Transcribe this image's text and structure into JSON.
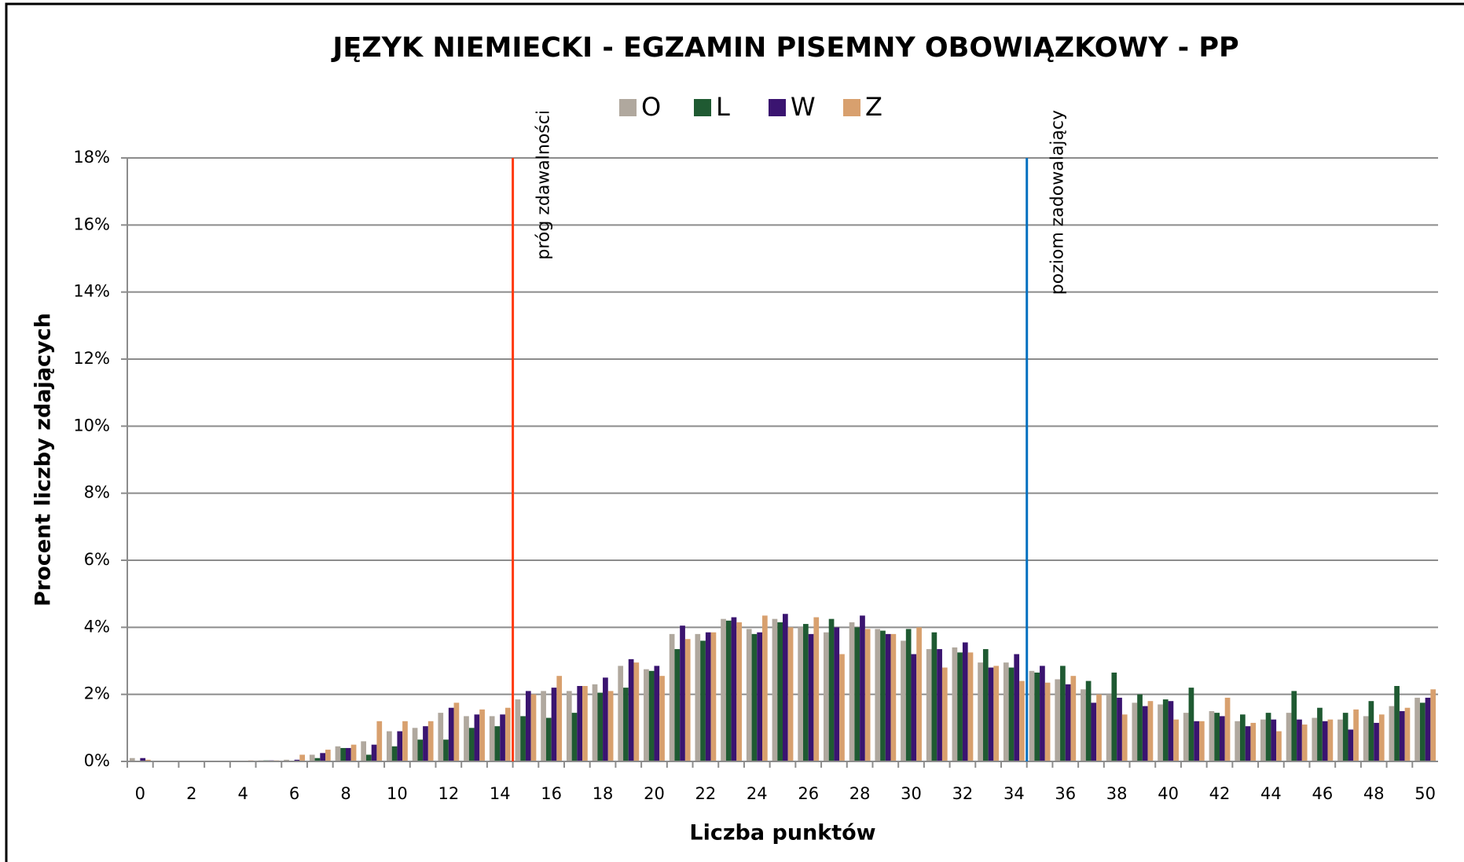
{
  "chart_data": {
    "type": "bar",
    "title": "JĘZYK NIEMIECKI - EGZAMIN PISEMNY OBOWIĄZKOWY - PP",
    "x_label": "Liczba punktów",
    "y_label": "Procent liczby zdających",
    "categories": [
      "0",
      null,
      "2",
      null,
      "4",
      null,
      "6",
      null,
      "8",
      null,
      "10",
      null,
      "12",
      null,
      "14",
      null,
      "16",
      null,
      "18",
      null,
      "20",
      null,
      "22",
      null,
      "24",
      null,
      "26",
      null,
      "28",
      null,
      "30",
      null,
      "32",
      null,
      "34",
      null,
      "36",
      null,
      "38",
      null,
      "40",
      null,
      "42",
      null,
      "44",
      null,
      "46",
      null,
      "48",
      null,
      "50"
    ],
    "series": [
      {
        "name": "O",
        "color": "#b0a89e",
        "values": [
          0.1,
          0,
          0,
          0,
          0,
          0.03,
          0.05,
          0.2,
          0.45,
          0.6,
          0.9,
          1.0,
          1.45,
          1.35,
          1.35,
          1.85,
          2.1,
          2.1,
          2.3,
          2.85,
          2.75,
          3.8,
          3.8,
          4.25,
          3.95,
          4.25,
          4.0,
          3.85,
          4.15,
          3.95,
          3.6,
          3.35,
          3.4,
          2.95,
          2.95,
          2.7,
          2.45,
          2.15,
          2.0,
          1.75,
          1.7,
          1.45,
          1.5,
          1.2,
          1.25,
          1.45,
          1.3,
          1.25,
          1.35,
          1.65,
          1.9
        ]
      },
      {
        "name": "L",
        "color": "#1f5a32",
        "values": [
          0,
          0,
          0,
          0,
          0,
          0.03,
          0,
          0.1,
          0.4,
          0.2,
          0.45,
          0.65,
          0.65,
          1.0,
          1.05,
          1.35,
          1.3,
          1.45,
          2.05,
          2.2,
          2.7,
          3.35,
          3.6,
          4.2,
          3.8,
          4.15,
          4.1,
          4.25,
          4.0,
          3.9,
          3.95,
          3.85,
          3.25,
          3.35,
          2.8,
          2.65,
          2.85,
          2.4,
          2.65,
          2.0,
          1.85,
          2.2,
          1.45,
          1.4,
          1.45,
          2.1,
          1.6,
          1.45,
          1.8,
          2.25,
          1.75
        ]
      },
      {
        "name": "W",
        "color": "#3a1470",
        "values": [
          0.1,
          0,
          0,
          0.02,
          0,
          0.03,
          0.05,
          0.25,
          0.4,
          0.5,
          0.9,
          1.05,
          1.6,
          1.4,
          1.4,
          2.1,
          2.2,
          2.25,
          2.5,
          3.05,
          2.85,
          4.05,
          3.85,
          4.3,
          3.85,
          4.4,
          3.8,
          4.0,
          4.35,
          3.8,
          3.2,
          3.35,
          3.55,
          2.8,
          3.2,
          2.85,
          2.3,
          1.75,
          1.9,
          1.65,
          1.8,
          1.2,
          1.35,
          1.05,
          1.25,
          1.25,
          1.2,
          0.95,
          1.15,
          1.5,
          1.9
        ]
      },
      {
        "name": "Z",
        "color": "#d8a06e",
        "values": [
          0.05,
          0,
          0,
          0,
          0.03,
          0.03,
          0.2,
          0.35,
          0.5,
          1.2,
          1.2,
          1.2,
          1.75,
          1.55,
          1.6,
          2.0,
          2.55,
          2.25,
          2.1,
          2.95,
          2.55,
          3.65,
          3.85,
          4.15,
          4.35,
          4.0,
          4.3,
          3.2,
          3.95,
          3.8,
          4.0,
          2.8,
          3.25,
          2.85,
          2.4,
          2.35,
          2.55,
          2.0,
          1.4,
          1.8,
          1.25,
          1.2,
          1.9,
          1.15,
          0.9,
          1.1,
          1.25,
          1.55,
          1.4,
          1.6,
          2.15
        ]
      }
    ],
    "ylim": [
      0,
      18
    ],
    "yticks": [
      {
        "value": 0,
        "label": "0%"
      },
      {
        "value": 2,
        "label": "2%"
      },
      {
        "value": 4,
        "label": "4%"
      },
      {
        "value": 6,
        "label": "6%"
      },
      {
        "value": 8,
        "label": "8%"
      },
      {
        "value": 10,
        "label": "10%"
      },
      {
        "value": 12,
        "label": "12%"
      },
      {
        "value": 14,
        "label": "14%"
      },
      {
        "value": 16,
        "label": "16%"
      },
      {
        "value": 18,
        "label": "18%"
      }
    ],
    "grid": true,
    "legend": "top",
    "annotations": [
      {
        "text": "próg zdawalności",
        "x": 14.5,
        "color": "#ff3a10"
      },
      {
        "text": "poziom zadowalający",
        "x": 34.5,
        "color": "#0070c0"
      }
    ]
  }
}
